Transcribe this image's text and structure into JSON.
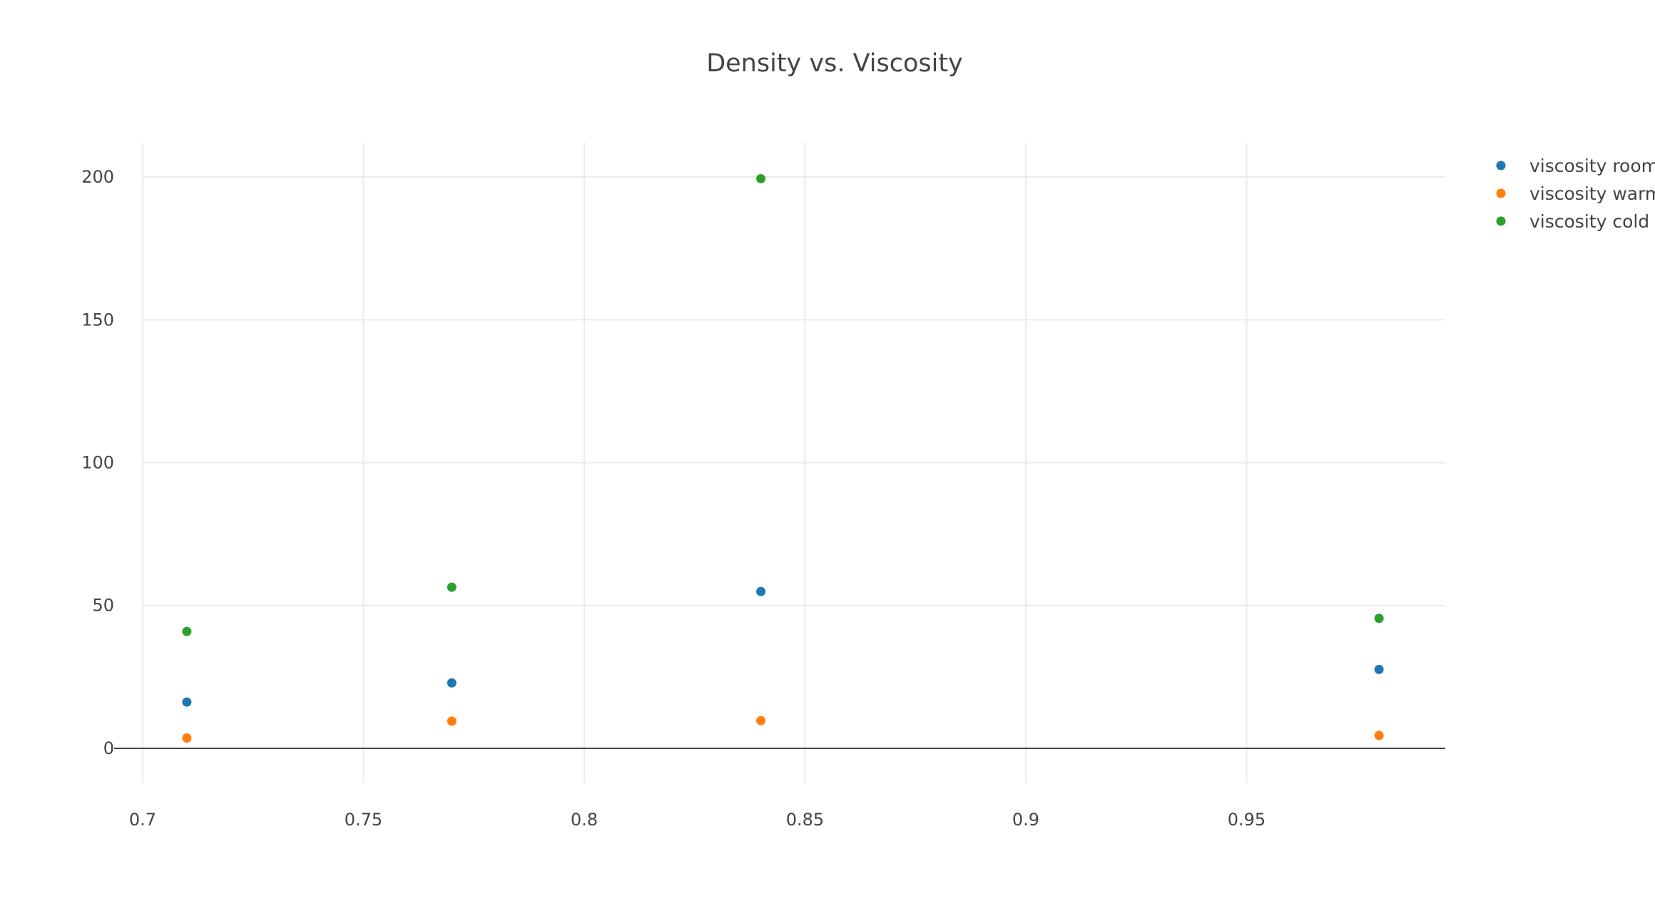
{
  "chart_data": {
    "type": "scatter",
    "title": "Density vs. Viscosity",
    "xlabel": "",
    "ylabel": "",
    "x": [
      0.71,
      0.77,
      0.84,
      0.98
    ],
    "xlim": [
      0.7,
      0.995
    ],
    "ylim": [
      -12,
      212
    ],
    "xticks": [
      0.7,
      0.75,
      0.8,
      0.85,
      0.9,
      0.95
    ],
    "xtick_labels": [
      "0.7",
      "0.75",
      "0.8",
      "0.85",
      "0.9",
      "0.95"
    ],
    "yticks": [
      0,
      50,
      100,
      150,
      200
    ],
    "ytick_labels": [
      "0",
      "50",
      "100",
      "150",
      "200"
    ],
    "grid": true,
    "legend_position": "top-right",
    "series": [
      {
        "name": "viscosity room",
        "color": "#1f77b4",
        "values": [
          16.2,
          22.9,
          54.9,
          27.6
        ]
      },
      {
        "name": "viscosity warm",
        "color": "#ff7f0e",
        "values": [
          3.6,
          9.5,
          9.7,
          4.5
        ]
      },
      {
        "name": "viscosity cold",
        "color": "#2ca02c",
        "values": [
          40.9,
          56.4,
          199.4,
          45.5
        ]
      }
    ]
  }
}
